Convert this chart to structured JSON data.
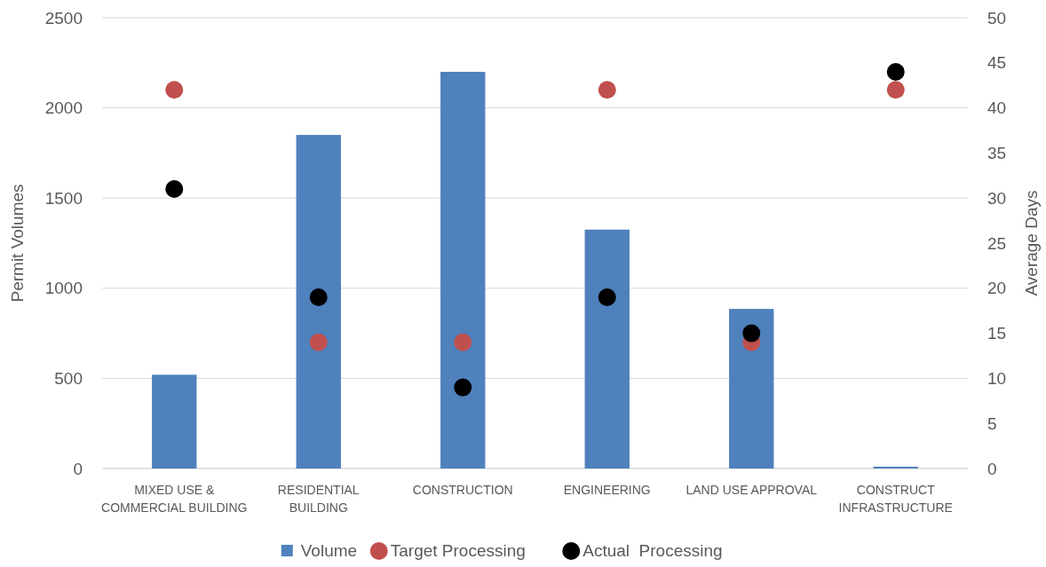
{
  "chart_data": {
    "type": "bar",
    "ylabel": "Permit Volumes",
    "y2label": "Average Days",
    "categories": [
      "MIXED USE & COMMERCIAL BUILDING",
      "RESIDENTIAL BUILDING",
      "CONSTRUCTION",
      "ENGINEERING",
      "LAND USE APPROVAL",
      "CONSTRUCT INFRASTRUCTURE"
    ],
    "series": [
      {
        "name": "Volume",
        "color": "#4f81bd",
        "values": [
          520,
          1850,
          2200,
          1325,
          885,
          10
        ]
      },
      {
        "name": "Target Processing",
        "type": "scatter",
        "axis": "y2",
        "color": "#c0504d",
        "x": [
          "MIXED USE & COMMERCIAL BUILDING",
          "RESIDENTIAL BUILDING",
          "CONSTRUCTION",
          "ENGINEERING",
          "LAND USE APPROVAL",
          "CONSTRUCT INFRASTRUCTURE"
        ],
        "values": [
          42,
          14,
          14,
          42,
          14,
          42
        ]
      },
      {
        "name": "Actual  Processing",
        "type": "scatter",
        "axis": "y2",
        "color": "#000000",
        "x": [
          "MIXED USE & COMMERCIAL BUILDING",
          "RESIDENTIAL BUILDING",
          "CONSTRUCTION",
          "ENGINEERING",
          "LAND USE APPROVAL",
          "CONSTRUCT INFRASTRUCTURE"
        ],
        "values": [
          31,
          19,
          9,
          19,
          15,
          44
        ]
      }
    ],
    "ylim": [
      0,
      2500
    ],
    "yticks": [
      0,
      500,
      1000,
      1500,
      2000,
      2500
    ],
    "y2lim": [
      0,
      50
    ],
    "y2ticks": [
      0,
      5,
      10,
      15,
      20,
      25,
      30,
      35,
      40,
      45,
      50
    ],
    "grid": "y",
    "legend": "bottom",
    "marker": "circle"
  }
}
